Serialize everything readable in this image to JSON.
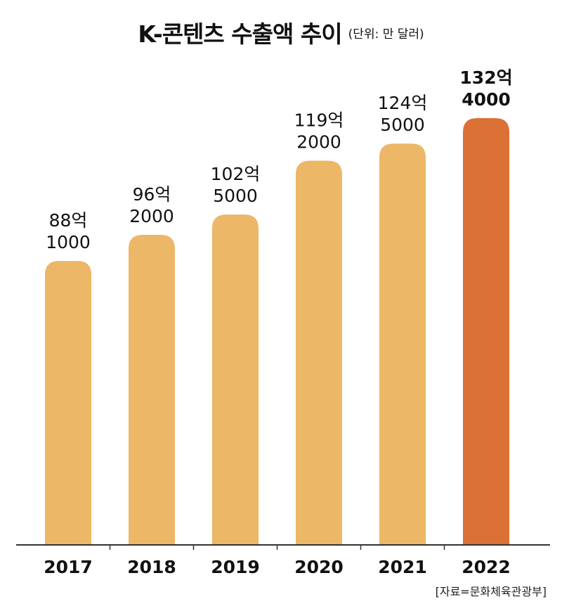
{
  "chart_data": {
    "type": "bar",
    "title": "K-콘텐츠 수출액 추이",
    "subtitle": "(단위: 만 달러)",
    "categories": [
      "2017",
      "2018",
      "2019",
      "2020",
      "2021",
      "2022"
    ],
    "values": [
      881000,
      962000,
      1025000,
      1192000,
      1245000,
      1324000
    ],
    "data_labels": [
      [
        "88억",
        "1000"
      ],
      [
        "96억",
        "2000"
      ],
      [
        "102억",
        "5000"
      ],
      [
        "119억",
        "2000"
      ],
      [
        "124억",
        "5000"
      ],
      [
        "132억",
        "4000"
      ]
    ],
    "highlight_index": 5,
    "ylim": [
      0,
      1400000
    ],
    "grid": false,
    "xlabel": "",
    "ylabel": "",
    "source": "[자료=문화체육관광부]"
  },
  "colors": {
    "bar": "#ecb766",
    "bar_highlight": "#db7135",
    "axis": "#333333",
    "text": "#111111"
  }
}
